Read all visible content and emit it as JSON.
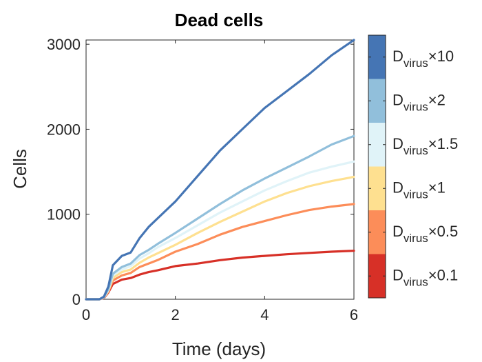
{
  "chart_data": {
    "type": "line",
    "title": "Dead cells",
    "xlabel": "Time (days)",
    "ylabel": "Cells",
    "xlim": [
      0,
      6
    ],
    "ylim": [
      0,
      3050
    ],
    "xticks": [
      0,
      2,
      4,
      6
    ],
    "yticks": [
      0,
      1000,
      2000,
      3000
    ],
    "x": [
      0,
      0.3,
      0.4,
      0.5,
      0.6,
      0.8,
      1.0,
      1.2,
      1.4,
      1.6,
      2.0,
      2.5,
      3.0,
      3.5,
      4.0,
      4.5,
      5.0,
      5.5,
      6.0
    ],
    "series": [
      {
        "name": "Dvirus×10",
        "color": "#4575b4",
        "values": [
          0,
          0,
          30,
          150,
          400,
          510,
          550,
          720,
          850,
          950,
          1150,
          1450,
          1750,
          2000,
          2250,
          2450,
          2650,
          2870,
          3050
        ]
      },
      {
        "name": "Dvirus×2",
        "color": "#91bfdb",
        "values": [
          0,
          0,
          25,
          120,
          300,
          380,
          420,
          520,
          580,
          650,
          780,
          950,
          1120,
          1280,
          1420,
          1550,
          1680,
          1820,
          1920
        ]
      },
      {
        "name": "Dvirus×1.5",
        "color": "#e0f3f8",
        "values": [
          0,
          0,
          22,
          110,
          280,
          350,
          390,
          480,
          540,
          610,
          720,
          870,
          1020,
          1150,
          1280,
          1390,
          1490,
          1560,
          1620
        ]
      },
      {
        "name": "Dvirus×1",
        "color": "#fee090",
        "values": [
          0,
          0,
          20,
          100,
          250,
          320,
          350,
          430,
          490,
          540,
          640,
          780,
          910,
          1030,
          1150,
          1250,
          1330,
          1390,
          1440
        ]
      },
      {
        "name": "Dvirus×0.5",
        "color": "#fc8d59",
        "values": [
          0,
          0,
          18,
          90,
          220,
          280,
          310,
          380,
          420,
          460,
          560,
          650,
          760,
          850,
          920,
          990,
          1050,
          1090,
          1120
        ]
      },
      {
        "name": "Dvirus×0.1",
        "color": "#d73027",
        "values": [
          0,
          0,
          15,
          80,
          180,
          230,
          250,
          290,
          320,
          340,
          390,
          420,
          460,
          490,
          510,
          530,
          545,
          560,
          570
        ]
      }
    ],
    "legend": "colorbar-right",
    "grid": false
  }
}
